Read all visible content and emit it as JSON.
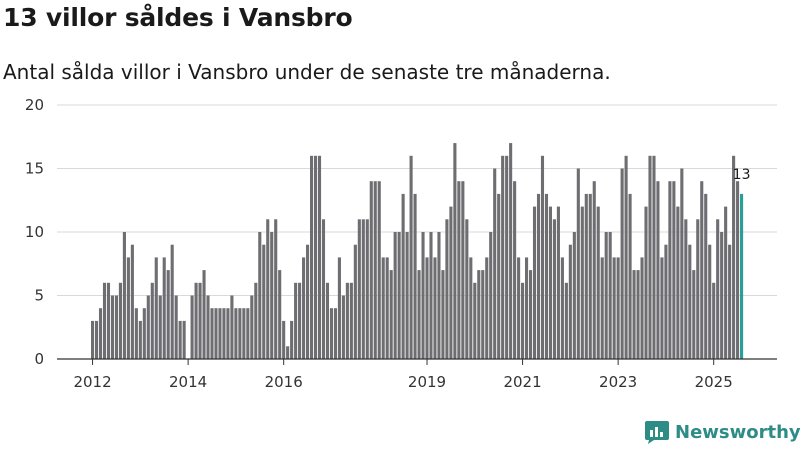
{
  "title": "13 villor såldes i Vansbro",
  "subtitle": "Antal sålda villor i Vansbro under de senaste tre månaderna.",
  "brand": {
    "name": "Newsworthy"
  },
  "colors": {
    "bar": "#6e6d72",
    "highlight": "#2a9d96",
    "grid": "#d9d9d9",
    "brand": "#2e8c86"
  },
  "chart_data": {
    "type": "bar",
    "title": "13 villor såldes i Vansbro",
    "subtitle": "Antal sålda villor i Vansbro under de senaste tre månaderna.",
    "xlabel": "",
    "ylabel": "",
    "ylim": [
      0,
      20
    ],
    "yticks": [
      0,
      5,
      10,
      15,
      20
    ],
    "grid": true,
    "x_start": "2012-01",
    "x_end": "2025-12",
    "xticks": [
      "2012",
      "2014",
      "2016",
      "2019",
      "2021",
      "2023",
      "2025"
    ],
    "series": [
      {
        "values": [
          3,
          3,
          4,
          6,
          6,
          5,
          5,
          6,
          10,
          8,
          9,
          4,
          3,
          4,
          5,
          6,
          8,
          5,
          8,
          7,
          9,
          5,
          3,
          3,
          0,
          5,
          6,
          6,
          7,
          5,
          4,
          4,
          4,
          4,
          4,
          5,
          4,
          4,
          4,
          4,
          5,
          6,
          10,
          9,
          11,
          10,
          11,
          7,
          3,
          1,
          3,
          6,
          6,
          8,
          9,
          16,
          16,
          16,
          11,
          6,
          4,
          4,
          8,
          5,
          6,
          6,
          9,
          11,
          11,
          11,
          14,
          14,
          14,
          8,
          8,
          7,
          10,
          10,
          13,
          10,
          16,
          13,
          7,
          10,
          8,
          10,
          8,
          10,
          7,
          11,
          12,
          17,
          14,
          14,
          11,
          8,
          6,
          7,
          7,
          8,
          10,
          15,
          13,
          16,
          16,
          17,
          14,
          8,
          6,
          8,
          7,
          12,
          13,
          16,
          13,
          12,
          11,
          12,
          8,
          6,
          9,
          10,
          15,
          12,
          13,
          13,
          14,
          12,
          8,
          10,
          10,
          8,
          8,
          15,
          16,
          13,
          7,
          7,
          8,
          12,
          16,
          16,
          14,
          8,
          9,
          14,
          14,
          12,
          15,
          11,
          9,
          7,
          11,
          14,
          13,
          9,
          6,
          11,
          10,
          12,
          9,
          16,
          14,
          13
        ]
      }
    ],
    "highlight": {
      "x": "2025-12",
      "value": 13,
      "label": "13"
    }
  }
}
